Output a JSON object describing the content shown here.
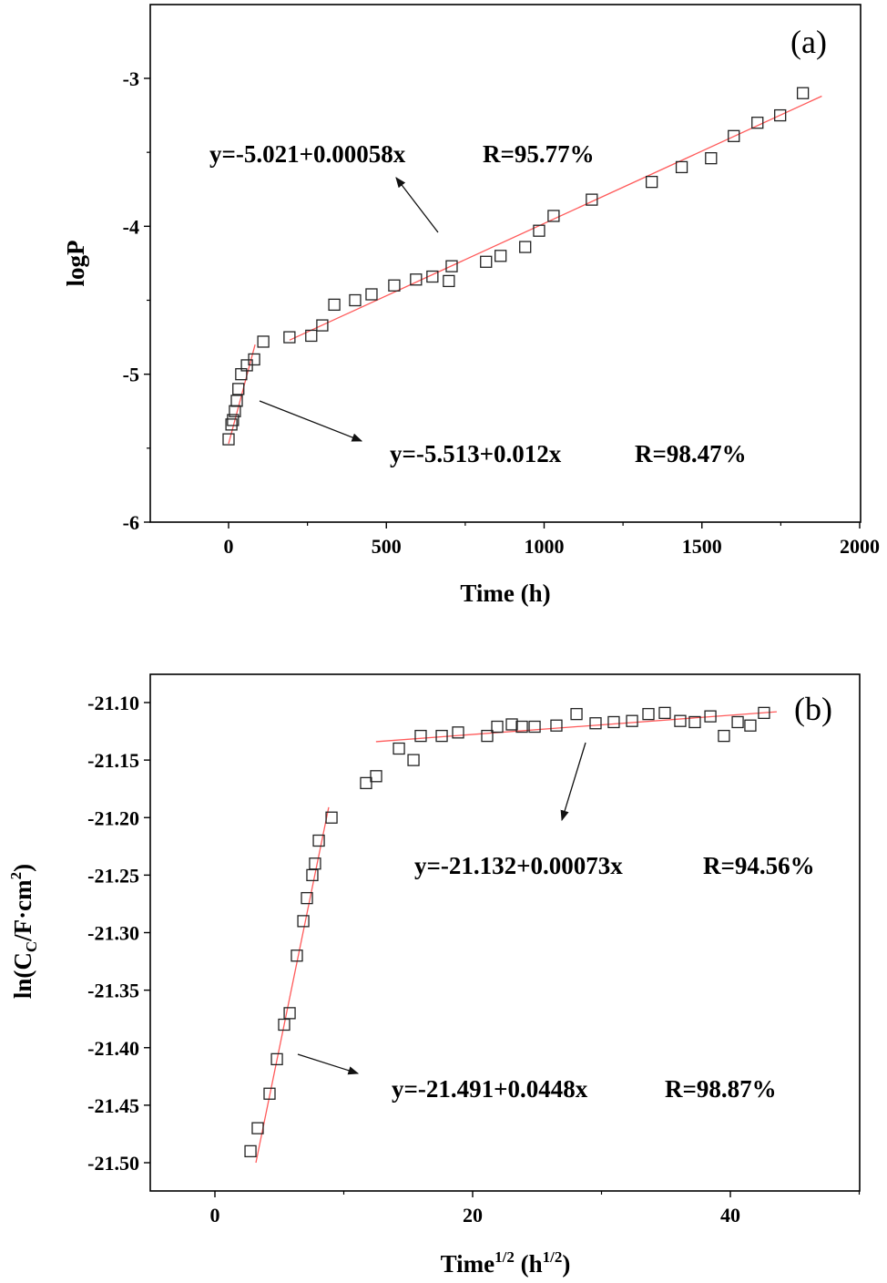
{
  "chart_data": [
    {
      "type": "scatter",
      "panel_label": "(a)",
      "xlabel": "Time (h)",
      "ylabel": "logP",
      "xlim": [
        -250,
        2000
      ],
      "ylim": [
        -6,
        -2.5
      ],
      "xticks": [
        0,
        500,
        1000,
        1500,
        2000
      ],
      "xtick_labels": [
        "0",
        "500",
        "1000",
        "1500",
        "2000"
      ],
      "yticks": [
        -3,
        -4,
        -5,
        -6
      ],
      "ytick_labels": [
        "-3",
        "-4",
        "-5",
        "-6"
      ],
      "grid": false,
      "marker": "open-square",
      "series": [
        {
          "name": "logP",
          "x": [
            0,
            9,
            14,
            20,
            26,
            31,
            40,
            58,
            81,
            110,
            193,
            262,
            297,
            335,
            401,
            453,
            525,
            594,
            646,
            698,
            707,
            816,
            862,
            940,
            984,
            1030,
            1151,
            1341,
            1436,
            1529,
            1601,
            1676,
            1748,
            1820
          ],
          "y": [
            -5.44,
            -5.34,
            -5.31,
            -5.25,
            -5.18,
            -5.1,
            -5.0,
            -4.94,
            -4.9,
            -4.78,
            -4.75,
            -4.74,
            -4.67,
            -4.53,
            -4.5,
            -4.46,
            -4.4,
            -4.36,
            -4.34,
            -4.37,
            -4.27,
            -4.24,
            -4.2,
            -4.14,
            -4.03,
            -3.93,
            -3.82,
            -3.7,
            -3.6,
            -3.54,
            -3.39,
            -3.3,
            -3.25,
            -3.1
          ]
        }
      ],
      "fits": [
        {
          "x": [
            0,
            84
          ],
          "y": [
            -5.47,
            -4.8
          ],
          "equation": "y=-5.513+0.012x",
          "r": "R=98.47%"
        },
        {
          "x": [
            193,
            1880
          ],
          "y": [
            -4.77,
            -3.12
          ],
          "equation": "y=-5.021+0.00058x",
          "r": "R=95.77%"
        }
      ],
      "colors": {
        "fit": "#ff5a5a",
        "marker": "#222222"
      }
    },
    {
      "type": "scatter",
      "panel_label": "(b)",
      "xlabel": {
        "base": "Time",
        "sup1": "1/2",
        "mid": " (h",
        "sup2": "1/2",
        "end": ")"
      },
      "ylabel": {
        "base": "ln(C",
        "sub": "C",
        "mid": "/F·cm",
        "sup": "2",
        "end": ")"
      },
      "xlim": [
        -5,
        50
      ],
      "ylim": [
        -21.52,
        -21.075
      ],
      "xticks": [
        0,
        20,
        40
      ],
      "xtick_labels": [
        "0",
        "20",
        "40"
      ],
      "yticks": [
        -21.1,
        -21.15,
        -21.2,
        -21.25,
        -21.3,
        -21.35,
        -21.4,
        -21.45,
        -21.5
      ],
      "ytick_labels": [
        "-21.10",
        "-21.15",
        "-21.20",
        "-21.25",
        "-21.30",
        "-21.35",
        "-21.40",
        "-21.45",
        "-21.50"
      ],
      "grid": false,
      "marker": "open-square",
      "series": [
        {
          "name": "ln(Cc)",
          "x": [
            2.76,
            3.32,
            4.24,
            4.81,
            5.37,
            5.8,
            6.36,
            6.86,
            7.14,
            7.56,
            7.77,
            8.06,
            9.05,
            11.73,
            12.51,
            14.28,
            15.41,
            15.97,
            17.6,
            18.87,
            21.13,
            21.91,
            23.04,
            23.82,
            24.81,
            26.5,
            28.06,
            29.54,
            30.95,
            32.37,
            33.64,
            34.91,
            36.11,
            37.24,
            38.45,
            39.5,
            40.57,
            41.55,
            42.61
          ],
          "y": [
            -21.49,
            -21.47,
            -21.44,
            -21.41,
            -21.38,
            -21.37,
            -21.32,
            -21.29,
            -21.27,
            -21.25,
            -21.24,
            -21.22,
            -21.2,
            -21.17,
            -21.164,
            -21.14,
            -21.15,
            -21.129,
            -21.129,
            -21.126,
            -21.129,
            -21.121,
            -21.119,
            -21.121,
            -21.121,
            -21.12,
            -21.11,
            -21.118,
            -21.117,
            -21.116,
            -21.11,
            -21.109,
            -21.116,
            -21.117,
            -21.112,
            -21.129,
            -21.117,
            -21.12,
            -21.109
          ]
        }
      ],
      "fits": [
        {
          "x": [
            3.18,
            8.83
          ],
          "y": [
            -21.5,
            -21.191
          ],
          "equation": "y=-21.491+0.0448x",
          "r": "R=98.87%"
        },
        {
          "x": [
            12.5,
            43.6
          ],
          "y": [
            -21.134,
            -21.108
          ],
          "equation": "y=-21.132+0.00073x",
          "r": "R=94.56%"
        }
      ],
      "colors": {
        "fit": "#ff5a5a",
        "marker": "#222222"
      }
    }
  ]
}
